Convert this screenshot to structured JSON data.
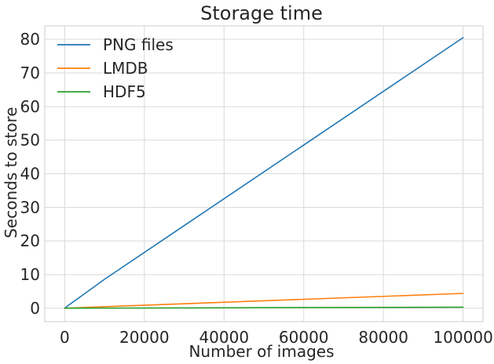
{
  "chart_data": {
    "type": "line",
    "title": "Storage time",
    "xlabel": "Number of images",
    "ylabel": "Seconds to store",
    "xlim": [
      -5000,
      105000
    ],
    "ylim": [
      -4,
      84
    ],
    "xticks": [
      0,
      20000,
      40000,
      60000,
      80000,
      100000
    ],
    "yticks": [
      0,
      10,
      20,
      30,
      40,
      50,
      60,
      70,
      80
    ],
    "grid": true,
    "legend_position": "top-left",
    "series": [
      {
        "name": "PNG files",
        "color": "#1f77b4",
        "x": [
          10,
          100,
          1000,
          10000,
          100000
        ],
        "y": [
          0.01,
          0.08,
          0.9,
          8.6,
          80.5
        ]
      },
      {
        "name": "LMDB",
        "color": "#ff7f0e",
        "x": [
          10,
          100,
          1000,
          10000,
          100000
        ],
        "y": [
          0.0,
          0.01,
          0.05,
          0.45,
          4.4
        ]
      },
      {
        "name": "HDF5",
        "color": "#2ca02c",
        "x": [
          10,
          100,
          1000,
          10000,
          100000
        ],
        "y": [
          0.0,
          0.0,
          0.01,
          0.03,
          0.3
        ]
      }
    ]
  }
}
